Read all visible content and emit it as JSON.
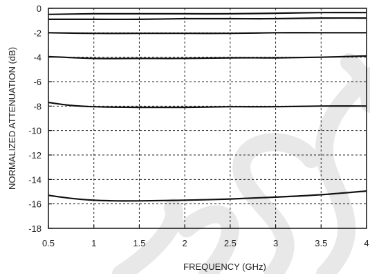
{
  "chart_data": {
    "type": "line",
    "title": "",
    "xlabel": "FREQUENCY (GHz)",
    "ylabel": "NORMALIZED ATTENUATION (dB)",
    "xlim": [
      0.5,
      4
    ],
    "ylim": [
      -18,
      0
    ],
    "x_ticks": [
      0.5,
      1,
      1.5,
      2,
      2.5,
      3,
      3.5,
      4
    ],
    "x_tick_labels": [
      "0.5",
      "1",
      "1.5",
      "2",
      "2.5",
      "3",
      "3.5",
      "4"
    ],
    "y_ticks": [
      0,
      -2,
      -4,
      -6,
      -8,
      -10,
      -12,
      -14,
      -16,
      -18
    ],
    "y_tick_labels": [
      "0",
      "-2",
      "-4",
      "-6",
      "-8",
      "-10",
      "-12",
      "-14",
      "-16",
      "-18"
    ],
    "grid": true,
    "grid_style": "dashed",
    "line_color": "#111111",
    "watermark_color": "#e8e8e8",
    "series": [
      {
        "x": [
          0.5,
          1,
          1.5,
          2,
          2.5,
          3,
          3.5,
          4
        ],
        "values": [
          -0.5,
          -0.45,
          -0.45,
          -0.45,
          -0.45,
          -0.4,
          -0.35,
          -0.35
        ]
      },
      {
        "x": [
          0.5,
          1,
          1.5,
          2,
          2.5,
          3,
          3.5,
          4
        ],
        "values": [
          -0.9,
          -0.9,
          -0.9,
          -0.85,
          -0.85,
          -0.85,
          -0.8,
          -0.8
        ]
      },
      {
        "x": [
          0.5,
          1,
          1.5,
          2,
          2.5,
          3,
          3.5,
          4
        ],
        "values": [
          -2.0,
          -2.05,
          -2.05,
          -2.05,
          -2.05,
          -2.0,
          -2.0,
          -2.0
        ]
      },
      {
        "x": [
          0.5,
          1,
          1.5,
          2,
          2.5,
          3,
          3.5,
          4
        ],
        "values": [
          -3.95,
          -4.1,
          -4.1,
          -4.1,
          -4.05,
          -4.05,
          -4.0,
          -3.9
        ]
      },
      {
        "x": [
          0.5,
          0.75,
          1,
          1.5,
          2,
          2.5,
          3,
          3.5,
          4
        ],
        "values": [
          -7.7,
          -7.95,
          -8.05,
          -8.1,
          -8.1,
          -8.05,
          -8.05,
          -8.0,
          -8.0
        ]
      },
      {
        "x": [
          0.5,
          0.75,
          1,
          1.25,
          1.5,
          2,
          2.5,
          3,
          3.5,
          4
        ],
        "values": [
          -15.3,
          -15.55,
          -15.7,
          -15.75,
          -15.75,
          -15.7,
          -15.6,
          -15.45,
          -15.25,
          -14.95
        ]
      }
    ]
  }
}
